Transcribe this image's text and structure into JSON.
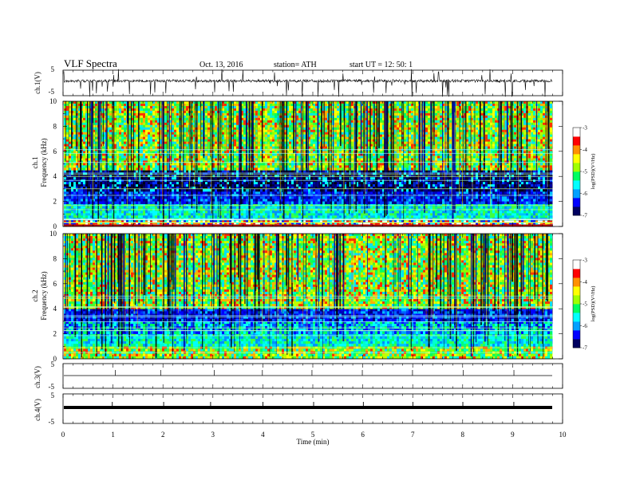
{
  "header": {
    "title": "VLF  Spectra",
    "date": "Oct. 13, 2016",
    "station": "station= ATH",
    "start": "start  UT =    12: 50: 1"
  },
  "chart_data": [
    {
      "type": "line",
      "name": "ch1-waveform",
      "ylabel": "ch.1(V)",
      "ylim": [
        -5,
        5
      ],
      "yticks": [
        "5",
        "-5"
      ],
      "xlim": [
        0,
        10
      ],
      "baseline": 0,
      "style": "noisy trace with frequent downward spikes"
    },
    {
      "type": "heatmap",
      "name": "ch1-spectrogram",
      "ylabel_lines": [
        "ch.1",
        "Frequency  (kHz)"
      ],
      "ylim": [
        0,
        10
      ],
      "yticks": [
        "0",
        "2",
        "4",
        "6",
        "8",
        "10"
      ],
      "xlim": [
        0,
        9.8
      ],
      "colorbar": {
        "label": "log(PSD)(V²/Hz)",
        "range": [
          -7,
          -3
        ],
        "ticks": [
          "-3",
          "-4",
          "-5",
          "-6",
          "-7"
        ],
        "colors": [
          "#000060",
          "#0000ff",
          "#00a0ff",
          "#00ffff",
          "#00ff60",
          "#a0ff00",
          "#ffff00",
          "#ff9000",
          "#ff0000",
          "#ffffff"
        ]
      },
      "bands": [
        {
          "f0": 0.0,
          "f1": 0.5,
          "level": "mixed"
        },
        {
          "f0": 0.5,
          "f1": 1.8,
          "level": "cyan"
        },
        {
          "f0": 1.8,
          "f1": 2.8,
          "level": "blue"
        },
        {
          "f0": 2.8,
          "f1": 4.5,
          "level": "dark"
        },
        {
          "f0": 4.5,
          "f1": 10.0,
          "level": "green"
        }
      ]
    },
    {
      "type": "heatmap",
      "name": "ch2-spectrogram",
      "ylabel_lines": [
        "ch.2",
        "Frequency  (kHz)"
      ],
      "ylim": [
        0,
        10
      ],
      "yticks": [
        "0",
        "2",
        "4",
        "6",
        "8",
        "10"
      ],
      "xlim": [
        0,
        9.8
      ],
      "colorbar": {
        "label": "log(PSD)(V²/Hz)",
        "range": [
          -7,
          -3
        ],
        "ticks": [
          "-3",
          "-4",
          "-5",
          "-6",
          "-7"
        ],
        "colors": [
          "#000060",
          "#0000ff",
          "#00a0ff",
          "#00ffff",
          "#00ff60",
          "#a0ff00",
          "#ffff00",
          "#ff9000",
          "#ff0000",
          "#ffffff"
        ]
      },
      "bands": [
        {
          "f0": 0.0,
          "f1": 1.0,
          "level": "green"
        },
        {
          "f0": 1.0,
          "f1": 2.0,
          "level": "cyan"
        },
        {
          "f0": 2.0,
          "f1": 3.0,
          "level": "cyan-blue"
        },
        {
          "f0": 3.0,
          "f1": 4.0,
          "level": "blue"
        },
        {
          "f0": 4.0,
          "f1": 10.0,
          "level": "green"
        }
      ]
    },
    {
      "type": "line",
      "name": "ch3-waveform",
      "ylabel": "ch.3(V)",
      "ylim": [
        -5,
        5
      ],
      "yticks": [
        "5",
        "-5"
      ],
      "xlim": [
        0,
        10
      ],
      "baseline": 0,
      "style": "flat line"
    },
    {
      "type": "line",
      "name": "ch4-waveform",
      "ylabel": "ch.4(V)",
      "ylim": [
        -5,
        5
      ],
      "yticks": [
        "5",
        "-5"
      ],
      "xlim": [
        0,
        10
      ],
      "baseline": 0,
      "style": "thick flat line"
    }
  ],
  "x_axis": {
    "label": "Time  (min)",
    "range": [
      0,
      10
    ],
    "ticks": [
      "0",
      "1",
      "2",
      "3",
      "4",
      "5",
      "6",
      "7",
      "8",
      "9",
      "10"
    ]
  }
}
